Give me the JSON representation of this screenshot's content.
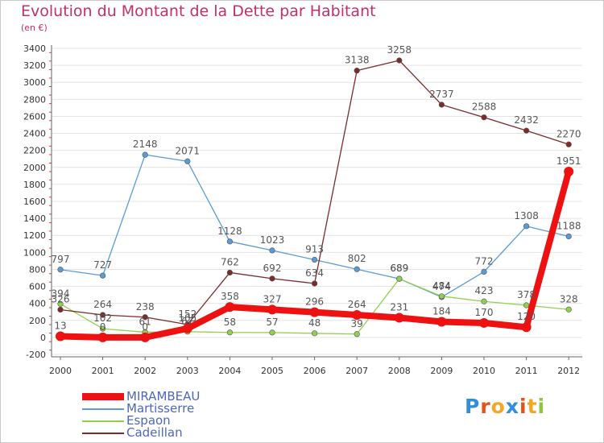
{
  "header": {
    "title": "Evolution du Montant de la Dette par Habitant",
    "subtitle": "(en €)"
  },
  "logo": {
    "text": "Proxiti",
    "colors": [
      "#2f8fd8",
      "#e0541c",
      "#f5a623",
      "#2f8fd8",
      "#e0541c",
      "#f5a623",
      "#8dc63f"
    ]
  },
  "chart_data": {
    "type": "line",
    "title": "Evolution du Montant de la Dette par Habitant",
    "subtitle": "(en €)",
    "categories": [
      "2000",
      "2001",
      "2002",
      "2003",
      "2004",
      "2005",
      "2006",
      "2007",
      "2008",
      "2009",
      "2010",
      "2011",
      "2012"
    ],
    "ylim": [
      -200,
      3400
    ],
    "yticks": [
      "-200",
      "0",
      "200",
      "400",
      "600",
      "800",
      "1000",
      "1200",
      "1400",
      "1600",
      "1800",
      "2000",
      "2200",
      "2400",
      "2600",
      "2800",
      "3000",
      "3200",
      "3400"
    ],
    "grid": "horizontal",
    "legend_position": "bottom-left",
    "series": [
      {
        "name": "MIRAMBEAU",
        "color": "#ee1111",
        "values": [
          13,
          0,
          0,
          105,
          358,
          327,
          296,
          264,
          231,
          184,
          170,
          120,
          1951
        ],
        "labels": [
          "13",
          "0",
          "0",
          "105",
          "358",
          "327",
          "296",
          "264",
          "231",
          "184",
          "170",
          "120",
          "1951"
        ]
      },
      {
        "name": "Martisserre",
        "color": "#5b9bd5",
        "values": [
          797,
          727,
          2148,
          2071,
          1128,
          1023,
          913,
          802,
          689,
          474,
          772,
          1308,
          1188
        ],
        "labels": [
          "797",
          "727",
          "2148",
          "2071",
          "1128",
          "1023",
          "913",
          "802",
          "689",
          "474",
          "772",
          "1308",
          "1188"
        ]
      },
      {
        "name": "Espaon",
        "color": "#8fd14f",
        "values": [
          394,
          102,
          61,
          67,
          58,
          57,
          48,
          39,
          689,
          484,
          423,
          378,
          328
        ],
        "labels": [
          "394",
          "102",
          "61",
          "67",
          "58",
          "57",
          "48",
          "39",
          "689",
          "484",
          "423",
          "378",
          "328"
        ]
      },
      {
        "name": "Cadeillan",
        "color": "#7b2b2b",
        "values": [
          326,
          264,
          238,
          152,
          762,
          692,
          634,
          3138,
          3258,
          2737,
          2588,
          2432,
          2270
        ],
        "labels": [
          "326",
          "264",
          "238",
          "152",
          "762",
          "692",
          "634",
          "3138",
          "3258",
          "2737",
          "2588",
          "2432",
          "2270"
        ]
      }
    ]
  }
}
